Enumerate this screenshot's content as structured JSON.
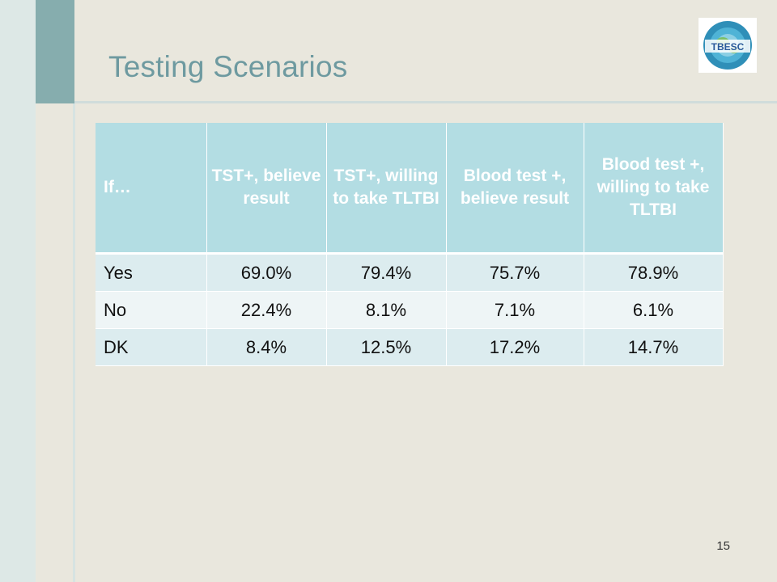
{
  "slide": {
    "title": "Testing Scenarios",
    "page_number": "15",
    "logo_text": "TBESC"
  },
  "table": {
    "headers": [
      "If…",
      "TST+, believe result",
      "TST+, willing to take TLTBI",
      "Blood test +, believe result",
      "Blood test +, willing to take TLTBI"
    ],
    "rows": [
      {
        "label": "Yes",
        "values": [
          "69.0%",
          "79.4%",
          "75.7%",
          "78.9%"
        ]
      },
      {
        "label": "No",
        "values": [
          "22.4%",
          "8.1%",
          "7.1%",
          "6.1%"
        ]
      },
      {
        "label": "DK",
        "values": [
          "8.4%",
          "12.5%",
          "17.2%",
          "14.7%"
        ]
      }
    ]
  },
  "colors": {
    "title": "#6e9aa0",
    "header_bg": "#b3dde3",
    "accent": "#86adae"
  }
}
